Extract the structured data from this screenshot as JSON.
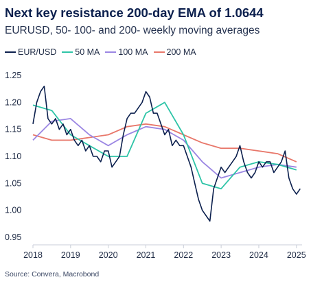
{
  "title": "Next key resistance 200-day EMA of 1.0644",
  "subtitle": "EURUSD, 50- 100- and 200- weekly moving averages",
  "source": "Source: Convera, Macrobond",
  "legend": [
    {
      "label": "EUR/USD",
      "color": "#0b1f4d"
    },
    {
      "label": "50 MA",
      "color": "#2ec4a7"
    },
    {
      "label": "100 MA",
      "color": "#9b86e3"
    },
    {
      "label": "200 MA",
      "color": "#e8776a"
    }
  ],
  "chart_data": {
    "type": "line",
    "ylim": [
      0.95,
      1.25
    ],
    "yticks": [
      "1.25",
      "1.20",
      "1.15",
      "1.10",
      "1.05",
      "1.00",
      "0.95"
    ],
    "yticks_values": [
      1.25,
      1.2,
      1.15,
      1.1,
      1.05,
      1.0,
      0.95
    ],
    "xlim": [
      2018.0,
      2025.15
    ],
    "xticks": [
      "2018",
      "2019",
      "2020",
      "2021",
      "2022",
      "2023",
      "2024",
      "2025"
    ],
    "xticks_values": [
      2018,
      2019,
      2020,
      2021,
      2022,
      2023,
      2024,
      2025
    ],
    "grid": false,
    "legend_position": "top-left",
    "series": [
      {
        "name": "EUR/USD",
        "color": "#0b1f4d",
        "x": [
          2018.0,
          2018.1,
          2018.2,
          2018.3,
          2018.4,
          2018.5,
          2018.6,
          2018.7,
          2018.8,
          2018.9,
          2019.0,
          2019.1,
          2019.2,
          2019.3,
          2019.4,
          2019.5,
          2019.6,
          2019.7,
          2019.8,
          2019.9,
          2020.0,
          2020.1,
          2020.2,
          2020.3,
          2020.4,
          2020.5,
          2020.6,
          2020.7,
          2020.8,
          2020.9,
          2021.0,
          2021.1,
          2021.2,
          2021.3,
          2021.4,
          2021.5,
          2021.6,
          2021.7,
          2021.8,
          2021.9,
          2022.0,
          2022.1,
          2022.2,
          2022.3,
          2022.4,
          2022.5,
          2022.6,
          2022.7,
          2022.8,
          2022.9,
          2023.0,
          2023.1,
          2023.2,
          2023.3,
          2023.4,
          2023.5,
          2023.6,
          2023.7,
          2023.8,
          2023.9,
          2024.0,
          2024.1,
          2024.2,
          2024.3,
          2024.4,
          2024.5,
          2024.6,
          2024.7,
          2024.8,
          2024.9,
          2025.0,
          2025.1
        ],
        "y": [
          1.16,
          1.2,
          1.22,
          1.23,
          1.17,
          1.16,
          1.17,
          1.15,
          1.16,
          1.14,
          1.15,
          1.13,
          1.12,
          1.13,
          1.11,
          1.12,
          1.1,
          1.1,
          1.09,
          1.11,
          1.11,
          1.08,
          1.09,
          1.1,
          1.14,
          1.17,
          1.18,
          1.18,
          1.19,
          1.2,
          1.22,
          1.21,
          1.18,
          1.18,
          1.16,
          1.14,
          1.15,
          1.12,
          1.13,
          1.12,
          1.12,
          1.1,
          1.08,
          1.05,
          1.02,
          1.0,
          0.99,
          0.98,
          1.04,
          1.06,
          1.08,
          1.07,
          1.08,
          1.09,
          1.1,
          1.12,
          1.09,
          1.07,
          1.06,
          1.07,
          1.09,
          1.08,
          1.09,
          1.09,
          1.07,
          1.08,
          1.09,
          1.11,
          1.06,
          1.04,
          1.03,
          1.04
        ]
      },
      {
        "name": "50 MA",
        "color": "#2ec4a7",
        "x": [
          2018.0,
          2018.5,
          2019.0,
          2019.5,
          2020.0,
          2020.5,
          2021.0,
          2021.5,
          2022.0,
          2022.5,
          2023.0,
          2023.5,
          2024.0,
          2024.5,
          2025.0
        ],
        "y": [
          1.195,
          1.185,
          1.14,
          1.12,
          1.1,
          1.1,
          1.18,
          1.2,
          1.14,
          1.05,
          1.04,
          1.08,
          1.09,
          1.085,
          1.075
        ]
      },
      {
        "name": "100 MA",
        "color": "#9b86e3",
        "x": [
          2018.0,
          2018.5,
          2019.0,
          2019.5,
          2020.0,
          2020.5,
          2021.0,
          2021.5,
          2022.0,
          2022.5,
          2023.0,
          2023.5,
          2024.0,
          2024.5,
          2025.0
        ],
        "y": [
          1.13,
          1.165,
          1.17,
          1.14,
          1.12,
          1.14,
          1.155,
          1.15,
          1.13,
          1.09,
          1.06,
          1.07,
          1.08,
          1.085,
          1.08
        ]
      },
      {
        "name": "200 MA",
        "color": "#e8776a",
        "x": [
          2018.0,
          2018.5,
          2019.0,
          2019.5,
          2020.0,
          2020.5,
          2021.0,
          2021.5,
          2022.0,
          2022.5,
          2023.0,
          2023.5,
          2024.0,
          2024.5,
          2025.0
        ],
        "y": [
          1.14,
          1.13,
          1.13,
          1.135,
          1.14,
          1.155,
          1.16,
          1.155,
          1.14,
          1.125,
          1.115,
          1.115,
          1.11,
          1.105,
          1.09
        ]
      }
    ]
  }
}
